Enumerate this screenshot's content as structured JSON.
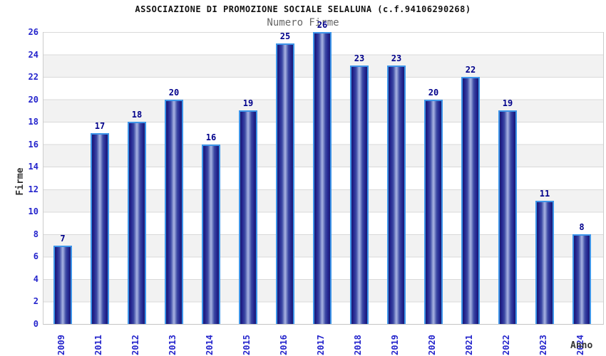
{
  "chart_data": {
    "type": "bar",
    "title": "ASSOCIAZIONE DI PROMOZIONE SOCIALE SELALUNA (c.f.94106290268)",
    "subtitle": "Numero Firme",
    "xlabel": "Anno",
    "ylabel": "Firme",
    "categories": [
      "2009",
      "2011",
      "2012",
      "2013",
      "2014",
      "2015",
      "2016",
      "2017",
      "2018",
      "2019",
      "2020",
      "2021",
      "2022",
      "2023",
      "2024"
    ],
    "values": [
      7,
      17,
      18,
      20,
      16,
      19,
      25,
      26,
      23,
      23,
      20,
      22,
      19,
      11,
      8
    ],
    "ylim": [
      0,
      26
    ],
    "ytick_step": 2,
    "grid": "horizontal gridlines with alternating white/gray bands",
    "legend": "none",
    "colors": {
      "bar_edge_dark": "#191970",
      "bar_center_light": "#a9b3e2",
      "bar_border": "#3e95e9",
      "tick_label": "#2424cc",
      "value_label": "#00008b",
      "band_gray": "#f2f2f2",
      "gridline": "#d9d9d9",
      "title": "#111111",
      "subtitle": "#666666",
      "axis_title": "#333333"
    }
  }
}
